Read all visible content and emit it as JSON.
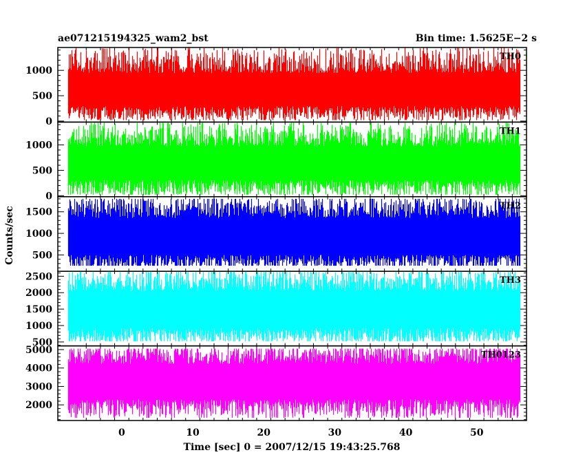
{
  "header": {
    "title": "ae071215194325_wam2_bst",
    "bin_time": "Bin time: 1.5625E−2 s"
  },
  "chart_data": {
    "type": "line",
    "title": "ae071215194325_wam2_bst",
    "xlabel": "Time [sec] 0 = 2007/12/15 19:43:25.768",
    "ylabel": "Counts/sec",
    "xlim": [
      -9,
      57
    ],
    "x_ticks": [
      0,
      10,
      20,
      30,
      40,
      50
    ],
    "data_x_range": [
      -7.5,
      56
    ],
    "bin_time": 0.015625,
    "grid": false,
    "panels": [
      {
        "name": "TH0",
        "color": "#ff0000",
        "ylim": [
          -20,
          1450
        ],
        "y_ticks": [
          0,
          500,
          1000
        ],
        "baseline": 600,
        "noise": 190,
        "spike_max": 1450,
        "floor": 20
      },
      {
        "name": "TH1",
        "color": "#00ff00",
        "ylim": [
          -20,
          1450
        ],
        "y_ticks": [
          0,
          500,
          1000
        ],
        "baseline": 620,
        "noise": 195,
        "spike_max": 1450,
        "floor": 20
      },
      {
        "name": "TH2",
        "color": "#0000ff",
        "ylim": [
          120,
          1850
        ],
        "y_ticks": [
          500,
          1000,
          1500
        ],
        "baseline": 900,
        "noise": 250,
        "spike_max": 1800,
        "floor": 250
      },
      {
        "name": "TH3",
        "color": "#00ffff",
        "ylim": [
          380,
          2650
        ],
        "y_ticks": [
          500,
          1000,
          1500,
          2000,
          2500
        ],
        "baseline": 1450,
        "noise": 330,
        "spike_max": 2650,
        "floor": 520
      },
      {
        "name": "TH0123",
        "color": "#ff00ff",
        "ylim": [
          1150,
          5200
        ],
        "y_ticks": [
          2000,
          3000,
          4000,
          5000
        ],
        "baseline": 3200,
        "noise": 560,
        "spike_max": 5050,
        "floor": 1300
      }
    ]
  }
}
